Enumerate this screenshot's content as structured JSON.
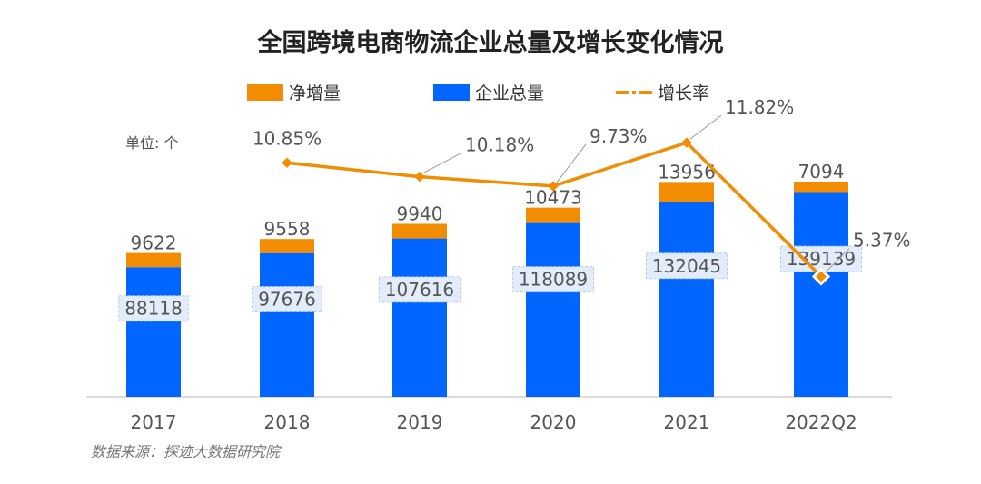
{
  "chart_data": {
    "type": "bar",
    "title": "全国跨境电商物流企业总量及增长变化情况",
    "unit_label": "单位: 个",
    "categories": [
      "2017",
      "2018",
      "2019",
      "2020",
      "2021",
      "2022Q2"
    ],
    "series": [
      {
        "name": "企业总量",
        "kind": "stacked-bar",
        "values": [
          88118,
          97676,
          107616,
          118089,
          132045,
          139139
        ]
      },
      {
        "name": "净增量",
        "kind": "stacked-bar",
        "values": [
          9622,
          9558,
          9940,
          10473,
          13956,
          7094
        ]
      },
      {
        "name": "增长率",
        "kind": "line",
        "values": [
          null,
          10.85,
          10.18,
          9.73,
          11.82,
          5.37
        ],
        "labels": [
          "",
          "10.85%",
          "10.18%",
          "9.73%",
          "11.82%",
          "5.37%"
        ]
      }
    ],
    "legend_position": "top",
    "grid": false,
    "source": "数据来源：探迹大数据研究院"
  },
  "colors": {
    "total": "#0066FF",
    "net": "#F28C00",
    "rate": "#F28C00",
    "label_box": "#E3ECFA"
  },
  "legend": {
    "net_label": "净增量",
    "total_label": "企业总量",
    "rate_label": "增长率"
  }
}
